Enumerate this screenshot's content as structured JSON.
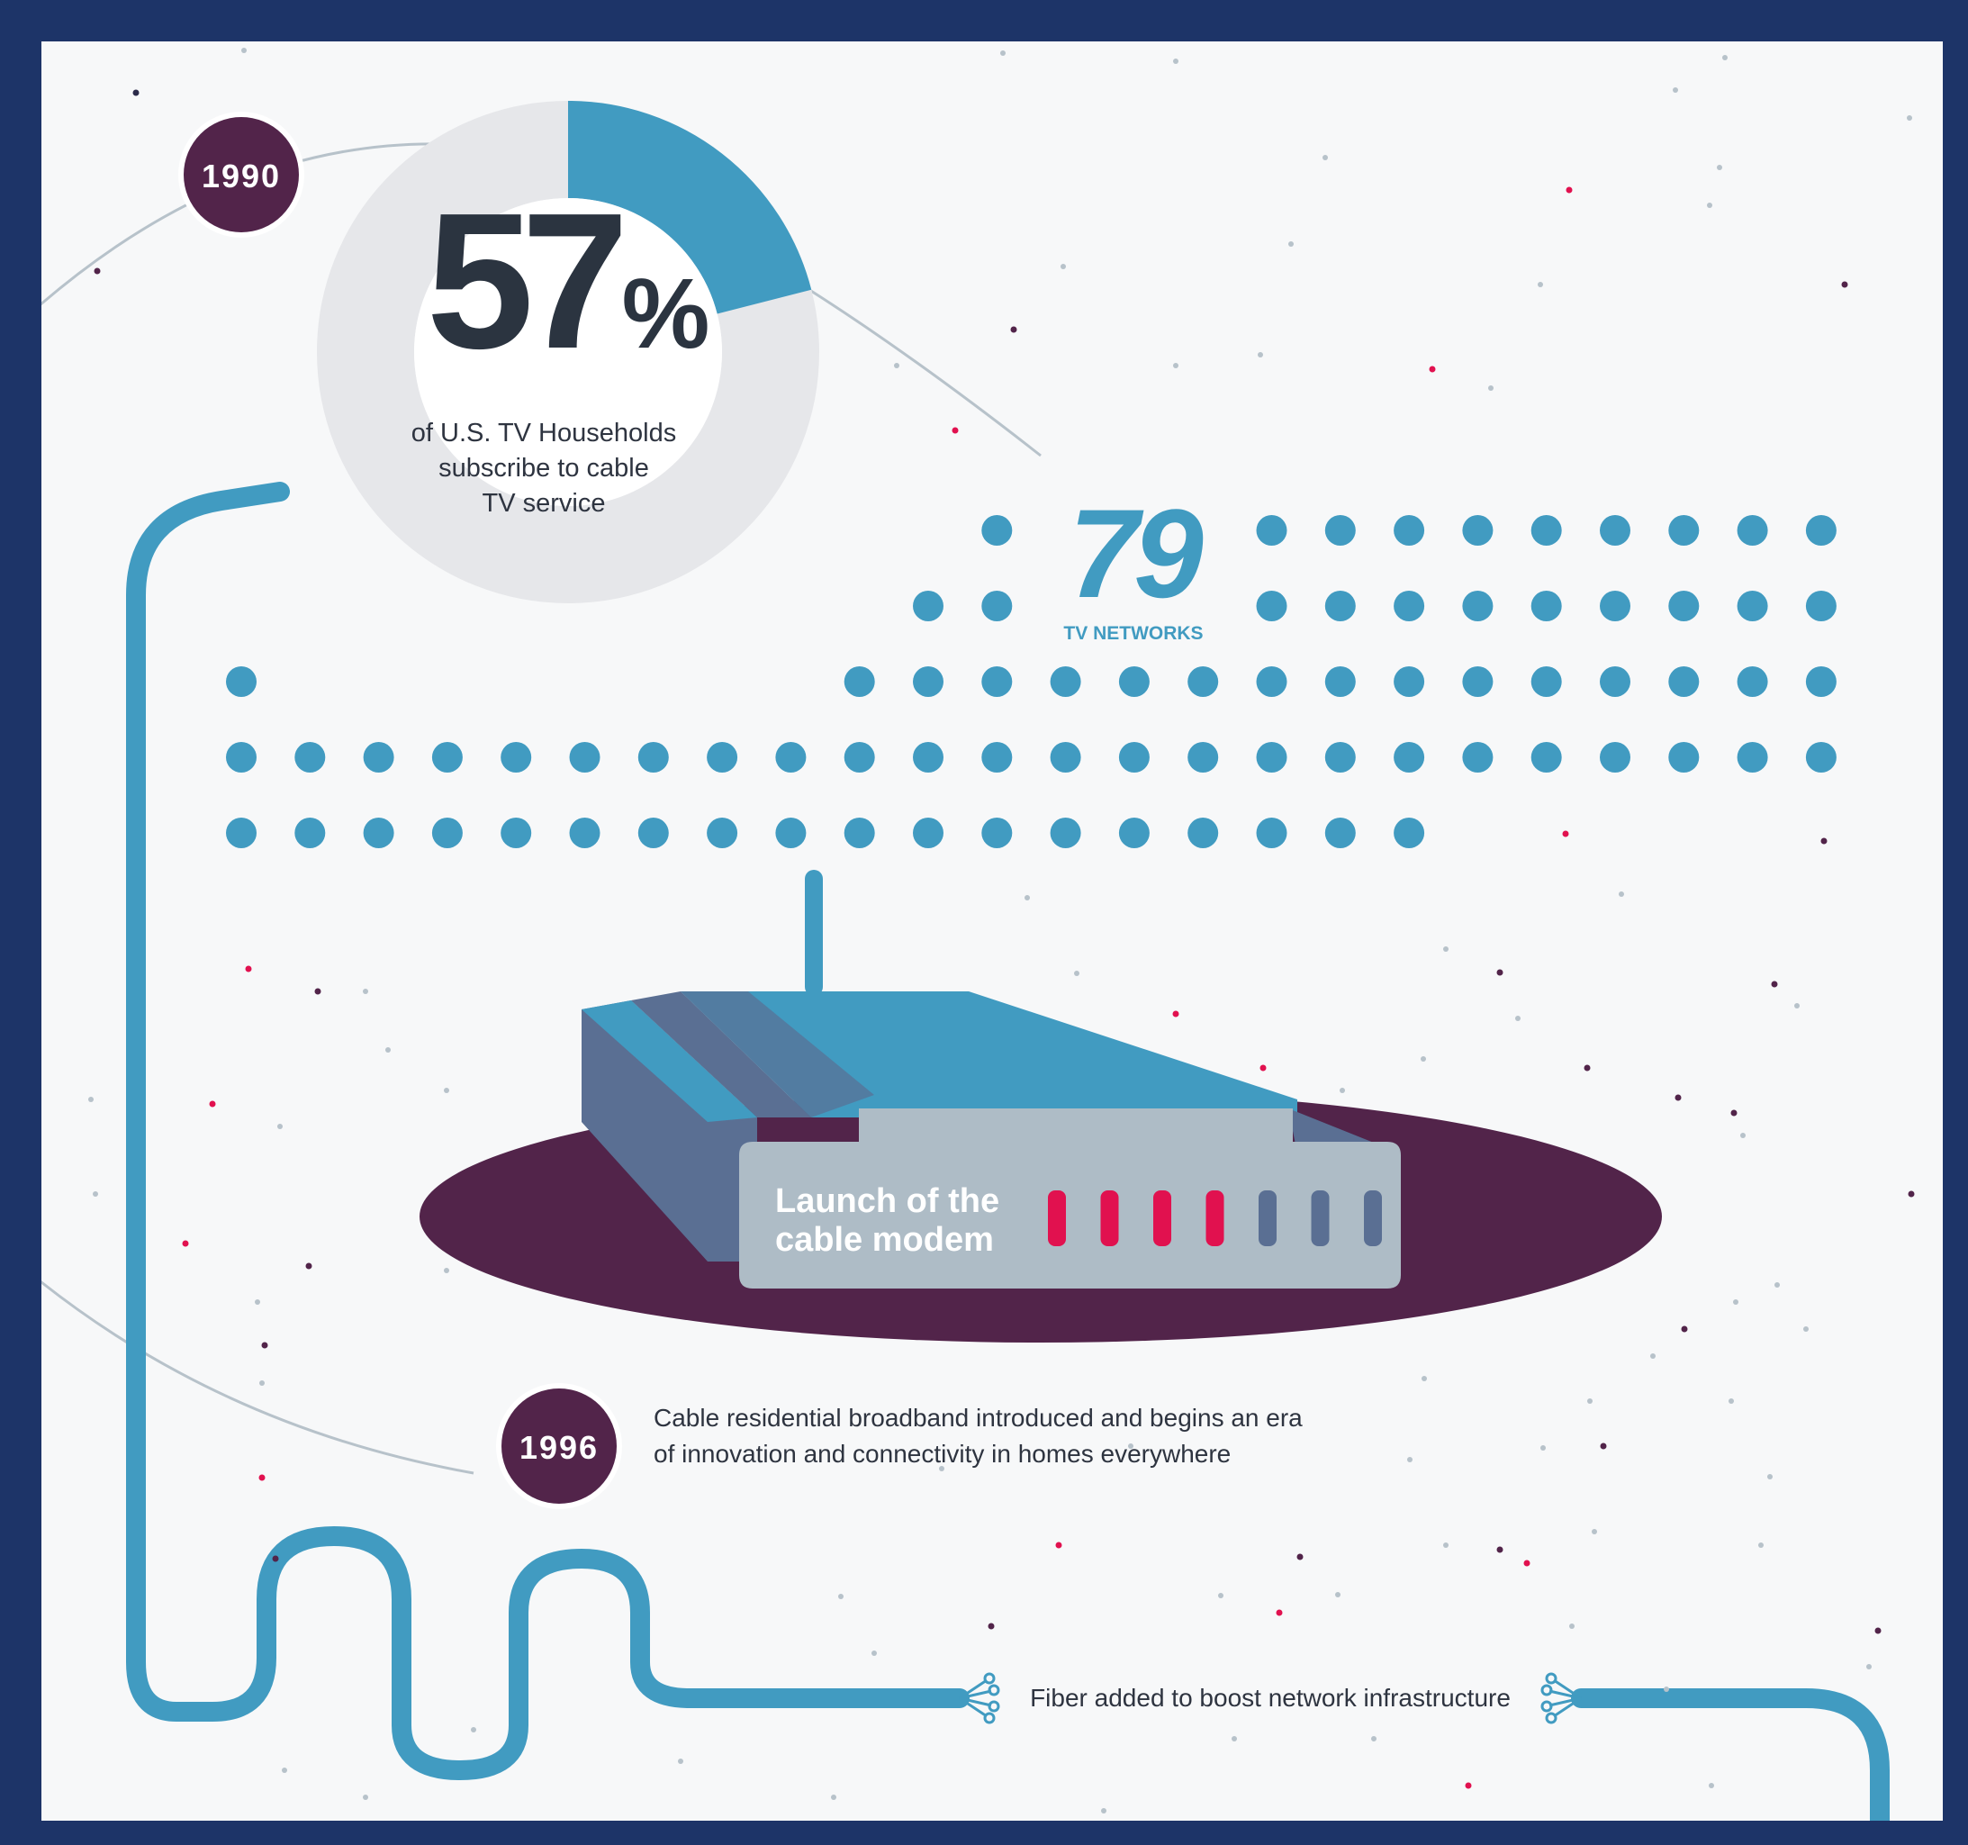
{
  "colors": {
    "frame": "#1d3468",
    "background": "#f7f8f9",
    "accent_blue": "#419bc1",
    "light_gray": "#e6e7ea",
    "plum": "#52244a",
    "modem_body": "#aebcc6",
    "modem_side": "#5a6f93",
    "led_on": "#e1114f",
    "led_off": "#5a6f93",
    "text_dark": "#2b3440"
  },
  "icons": [
    "donut-chart-icon",
    "tv-network-dot-icon",
    "cable-modem-icon",
    "fiber-end-icon"
  ],
  "milestone_1990": {
    "year": "1990",
    "percent_number": "57",
    "percent_sign": "%",
    "share_fraction": 0.57,
    "caption_lines": [
      "of U.S. TV Households",
      "subscribe to cable",
      "TV service"
    ]
  },
  "networks": {
    "count": "79",
    "count_value": 79,
    "label": "TV NETWORKS"
  },
  "modem": {
    "label_lines": [
      "Launch of the",
      "cable modem"
    ],
    "leds_on": 4,
    "leds_total": 7
  },
  "milestone_1996": {
    "year": "1996",
    "description_lines": [
      "Cable residential broadband introduced and begins an era",
      "of innovation and connectivity in homes everywhere"
    ]
  },
  "fiber": {
    "label": "Fiber added to boost network infrastructure"
  }
}
